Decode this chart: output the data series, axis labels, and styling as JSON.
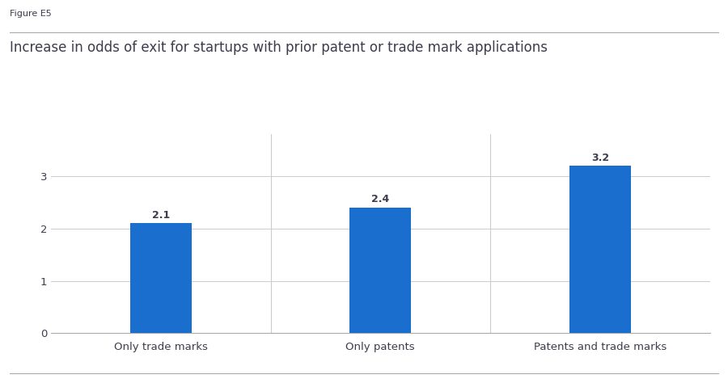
{
  "figure_label": "Figure E5",
  "title": "Increase in odds of exit for startups with prior patent or trade mark applications",
  "categories": [
    "Only trade marks",
    "Only patents",
    "Patents and trade marks"
  ],
  "values": [
    2.1,
    2.4,
    3.2
  ],
  "bar_color": "#1a6fce",
  "ylim": [
    0,
    3.8
  ],
  "yticks": [
    0,
    1,
    2,
    3
  ],
  "background_color": "#ffffff",
  "text_color": "#3d3d4e",
  "bar_width": 0.28,
  "title_fontsize": 12,
  "figure_label_fontsize": 8,
  "tick_label_fontsize": 9.5,
  "value_label_fontsize": 9,
  "grid_color": "#cccccc",
  "divider_color": "#cccccc",
  "border_color": "#aaaaaa"
}
